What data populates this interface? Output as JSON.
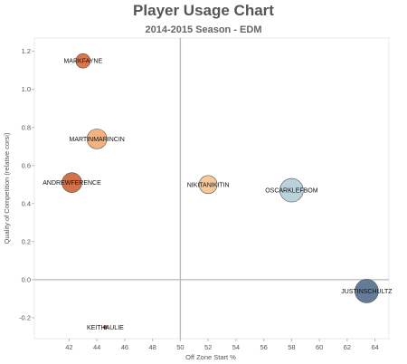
{
  "chart_data": {
    "type": "scatter",
    "title": "Player Usage Chart",
    "subtitle": "2014-2015 Season - EDM",
    "xlabel": "Off Zone Start %",
    "ylabel": "Quality of Competition (relative corsi)",
    "xlim": [
      39.5,
      65.0
    ],
    "ylim": [
      -0.31,
      1.27
    ],
    "x_ticks": [
      42,
      44,
      46,
      48,
      50,
      52,
      54,
      56,
      58,
      60,
      62,
      64
    ],
    "y_ticks": [
      -0.2,
      0.0,
      0.2,
      0.4,
      0.6,
      0.8,
      1.0,
      1.2
    ],
    "y_tick_labels": [
      "-0.2",
      "0.0",
      "0.2",
      "0.4",
      "0.6",
      "0.8",
      "1.0",
      "1.2"
    ],
    "reference_lines": {
      "x": 50,
      "y": 0.0
    },
    "grid": false,
    "points": [
      {
        "label": "MARKFAYNE",
        "x": 43.0,
        "y": 1.15,
        "size": 8,
        "color": "#d2622c"
      },
      {
        "label": "MARTINMARINCIN",
        "x": 44.0,
        "y": 0.74,
        "size": 11,
        "color": "#f2a46a"
      },
      {
        "label": "ANDREWFERENCE",
        "x": 42.2,
        "y": 0.51,
        "size": 11,
        "color": "#c95a2a"
      },
      {
        "label": "NIKITANIKITIN",
        "x": 52.0,
        "y": 0.5,
        "size": 10,
        "color": "#f7c089"
      },
      {
        "label": "OSCARKLEFBOM",
        "x": 58.0,
        "y": 0.47,
        "size": 13,
        "color": "#adcad6"
      },
      {
        "label": "JUSTINSCHULTZ",
        "x": 63.4,
        "y": -0.06,
        "size": 13,
        "color": "#4a6585"
      },
      {
        "label": "KEITHAULIE",
        "x": 44.6,
        "y": -0.25,
        "size": 2,
        "color": "#8a3a1a"
      }
    ]
  }
}
